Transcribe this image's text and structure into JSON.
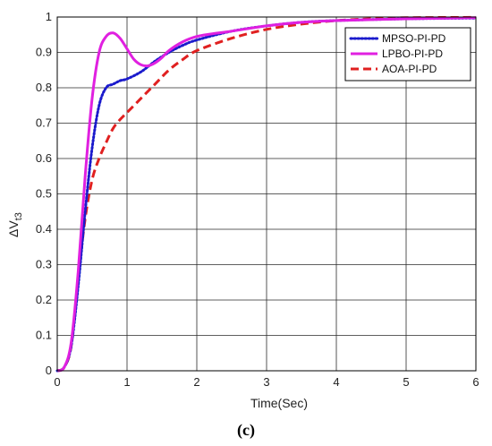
{
  "chart_data": {
    "type": "line",
    "xlabel": "Time(Sec)",
    "ylabel_main": "ΔV",
    "ylabel_sub": "t3",
    "caption": "(c)",
    "xlim": [
      0,
      6
    ],
    "ylim": [
      0,
      1
    ],
    "x_ticks": [
      0,
      1,
      2,
      3,
      4,
      5,
      6
    ],
    "y_ticks": [
      0,
      0.1,
      0.2,
      0.3,
      0.4,
      0.5,
      0.6,
      0.7,
      0.8,
      0.9,
      1
    ],
    "x_tick_labels": [
      "0",
      "1",
      "2",
      "3",
      "4",
      "5",
      "6"
    ],
    "y_tick_labels": [
      "0",
      "0.1",
      "0.2",
      "0.3",
      "0.4",
      "0.5",
      "0.6",
      "0.7",
      "0.8",
      "0.9",
      "1"
    ],
    "grid": true,
    "legend_position": "top-right",
    "series": [
      {
        "name": "MPSO-PI-PD",
        "color": "#1a1acc",
        "style": "dotted",
        "x": [
          0,
          0.1,
          0.2,
          0.3,
          0.4,
          0.5,
          0.6,
          0.7,
          0.8,
          0.9,
          1.0,
          1.2,
          1.4,
          1.6,
          1.8,
          2.0,
          2.5,
          3.0,
          3.5,
          4.0,
          5.0,
          6.0
        ],
        "y": [
          0,
          0.01,
          0.07,
          0.24,
          0.45,
          0.63,
          0.75,
          0.8,
          0.81,
          0.82,
          0.825,
          0.845,
          0.875,
          0.9,
          0.92,
          0.935,
          0.96,
          0.975,
          0.985,
          0.99,
          0.995,
          0.997
        ]
      },
      {
        "name": "LPBO-PI-PD",
        "color": "#e020e0",
        "style": "solid",
        "x": [
          0,
          0.1,
          0.2,
          0.3,
          0.4,
          0.5,
          0.6,
          0.7,
          0.8,
          0.9,
          1.0,
          1.1,
          1.2,
          1.3,
          1.4,
          1.5,
          1.6,
          1.8,
          2.0,
          2.2,
          2.5,
          3.0,
          3.5,
          4.0,
          5.0,
          6.0
        ],
        "y": [
          0,
          0.01,
          0.08,
          0.28,
          0.55,
          0.77,
          0.9,
          0.945,
          0.955,
          0.94,
          0.91,
          0.88,
          0.865,
          0.862,
          0.87,
          0.885,
          0.905,
          0.93,
          0.945,
          0.952,
          0.96,
          0.975,
          0.985,
          0.99,
          0.995,
          0.998
        ]
      },
      {
        "name": "AOA-PI-PD",
        "color": "#e02020",
        "style": "dashed",
        "x": [
          0,
          0.1,
          0.2,
          0.3,
          0.4,
          0.5,
          0.6,
          0.7,
          0.8,
          0.9,
          1.0,
          1.2,
          1.4,
          1.6,
          1.8,
          2.0,
          2.5,
          3.0,
          3.5,
          4.0,
          4.5,
          5.0,
          6.0
        ],
        "y": [
          0,
          0.01,
          0.07,
          0.26,
          0.43,
          0.54,
          0.6,
          0.645,
          0.685,
          0.71,
          0.73,
          0.77,
          0.81,
          0.85,
          0.88,
          0.905,
          0.94,
          0.965,
          0.98,
          0.99,
          0.995,
          0.998,
          0.999
        ]
      }
    ]
  }
}
